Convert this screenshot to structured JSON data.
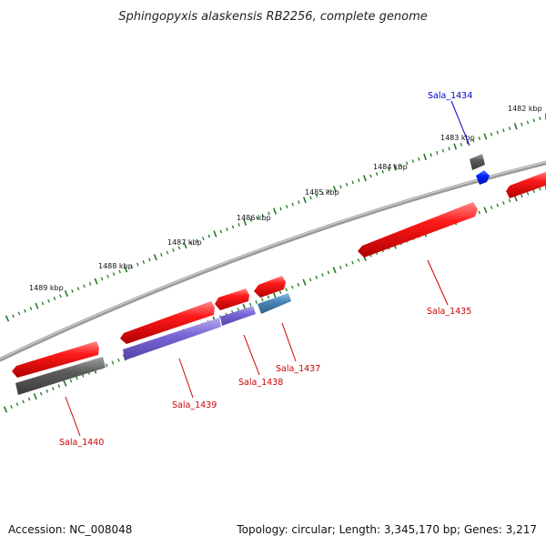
{
  "title": "Sphingopyxis alaskensis RB2256, complete genome",
  "footer": {
    "accession": "Accession: NC_008048",
    "summary": "Topology: circular; Length: 3,345,170 bp; Genes: 3,217"
  },
  "ticks": [
    {
      "label": "1482 kbp"
    },
    {
      "label": "1483 kbp"
    },
    {
      "label": "1484 kbp"
    },
    {
      "label": "1485 kbp"
    },
    {
      "label": "1486 kbp"
    },
    {
      "label": "1487 kbp"
    },
    {
      "label": "1488 kbp"
    },
    {
      "label": "1489 kbp"
    }
  ],
  "genes": [
    {
      "name": "Sala_1434",
      "color": "#0000cc"
    },
    {
      "name": "Sala_1435",
      "color": "#cc0000"
    },
    {
      "name": "Sala_1437",
      "color": "#cc0000"
    },
    {
      "name": "Sala_1438",
      "color": "#cc0000"
    },
    {
      "name": "Sala_1439",
      "color": "#cc0000"
    },
    {
      "name": "Sala_1440",
      "color": "#cc0000"
    }
  ],
  "colors": {
    "backbone": "#8a8a8a",
    "tick": "#1f7a1f",
    "forward_cds": "#ee1111",
    "reverse_gray": "#666666",
    "reverse_purple": "#7a66d6",
    "reverse_steel": "#4a86b8",
    "rna": "#0022ff"
  }
}
